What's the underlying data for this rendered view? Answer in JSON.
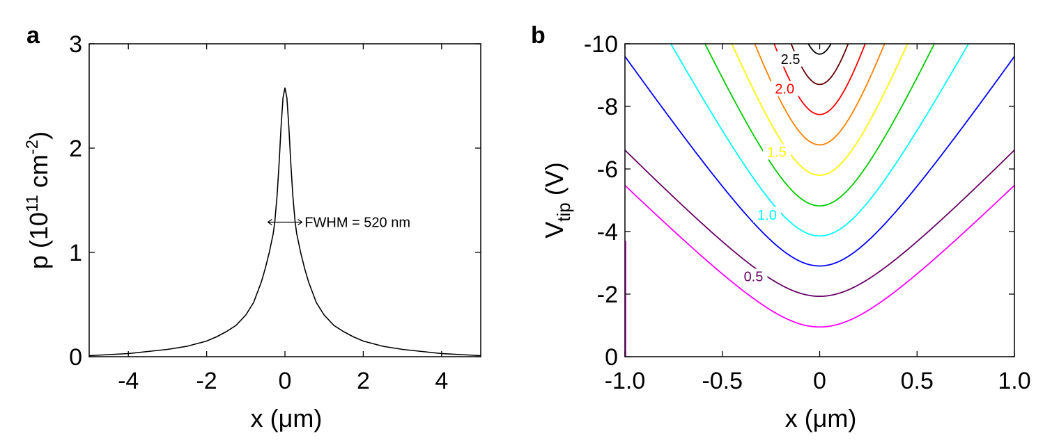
{
  "chart_data": [
    {
      "panel": "a",
      "type": "line",
      "xlabel_parts": [
        "x (",
        "μm",
        ")"
      ],
      "ylabel_parts": [
        "p (10",
        "11",
        " cm",
        "-2",
        ")"
      ],
      "xlim": [
        -5,
        5
      ],
      "ylim": [
        0,
        3
      ],
      "xticks": [
        -4,
        -2,
        0,
        2,
        4
      ],
      "xtick_labels": [
        "-4",
        "-2",
        "0",
        "2",
        "4"
      ],
      "yticks": [
        0,
        1,
        2,
        3
      ],
      "ytick_labels": [
        "0",
        "1",
        "2",
        "3"
      ],
      "grid": false,
      "series": [
        {
          "color": "#000000",
          "x": [
            -5,
            -4.5,
            -4,
            -3.5,
            -3,
            -2.5,
            -2,
            -1.75,
            -1.5,
            -1.25,
            -1,
            -0.8,
            -0.6,
            -0.5,
            -0.4,
            -0.3,
            -0.26,
            -0.2,
            -0.15,
            -0.1,
            -0.05,
            0,
            0.05,
            0.1,
            0.15,
            0.2,
            0.26,
            0.3,
            0.4,
            0.5,
            0.6,
            0.8,
            1,
            1.25,
            1.5,
            1.75,
            2,
            2.5,
            3,
            3.5,
            4,
            4.5,
            5
          ],
          "y": [
            0.01,
            0.02,
            0.03,
            0.05,
            0.07,
            0.1,
            0.15,
            0.19,
            0.24,
            0.3,
            0.4,
            0.52,
            0.72,
            0.85,
            1.0,
            1.18,
            1.29,
            1.55,
            1.85,
            2.2,
            2.48,
            2.58,
            2.48,
            2.2,
            1.85,
            1.55,
            1.29,
            1.18,
            1.0,
            0.85,
            0.72,
            0.52,
            0.4,
            0.3,
            0.24,
            0.19,
            0.15,
            0.1,
            0.07,
            0.05,
            0.03,
            0.02,
            0.01
          ]
        }
      ],
      "annotation": {
        "text": "FWHM = 520 nm",
        "arrow_x": [
          -0.26,
          0.26
        ],
        "arrow_y": 1.29,
        "text_x": 0.45,
        "text_y": 1.29
      }
    },
    {
      "panel": "b",
      "type": "contour",
      "xlabel_parts": [
        "x (",
        "μm",
        ")"
      ],
      "ylabel_parts": [
        "V",
        "tip",
        " (V)"
      ],
      "xlim": [
        -1.0,
        1.0
      ],
      "ylim": [
        0,
        -10
      ],
      "xticks": [
        -1.0,
        -0.5,
        0,
        0.5,
        1.0
      ],
      "xtick_labels": [
        "-1.0",
        "-0.5",
        "0",
        "0.5",
        "1.0"
      ],
      "yticks": [
        0,
        -2,
        -4,
        -6,
        -8,
        -10
      ],
      "ytick_labels": [
        "0",
        "-2",
        "-4",
        "-6",
        "-8",
        "-10"
      ],
      "grid": false,
      "contours": [
        {
          "level": 0.25,
          "color": "#ff00ff",
          "vmin": -0.95,
          "slope": 6.2,
          "width": 0.32
        },
        {
          "level": 0.5,
          "color": "#660066",
          "vmin": -1.93,
          "slope": 6.4,
          "width": 0.32
        },
        {
          "level": 0.75,
          "color": "#0000ff",
          "vmin": -2.9,
          "slope": 9.0,
          "width": 0.3
        },
        {
          "level": 1.0,
          "color": "#00ffff",
          "vmin": -3.86,
          "slope": 11.5,
          "width": 0.28
        },
        {
          "level": 1.25,
          "color": "#00cc00",
          "vmin": -4.82,
          "slope": 13.5,
          "width": 0.26
        },
        {
          "level": 1.5,
          "color": "#ffff00",
          "vmin": -5.8,
          "slope": 15.5,
          "width": 0.24
        },
        {
          "level": 1.75,
          "color": "#ff8000",
          "vmin": -6.77,
          "slope": 18.0,
          "width": 0.22
        },
        {
          "level": 2.0,
          "color": "#ff0000",
          "vmin": -7.74,
          "slope": 21.0,
          "width": 0.2
        },
        {
          "level": 2.25,
          "color": "#660000",
          "vmin": -8.7,
          "slope": 25.0,
          "width": 0.18
        },
        {
          "level": 2.5,
          "color": "#000000",
          "vmin": -9.67,
          "slope": 30.0,
          "width": 0.15
        }
      ],
      "contour_labels": [
        {
          "text": "0.5",
          "x": -0.34,
          "y": -2.5,
          "color": "#660066"
        },
        {
          "text": "1.0",
          "x": -0.27,
          "y": -4.47,
          "color": "#00ffff"
        },
        {
          "text": "1.5",
          "x": -0.22,
          "y": -6.48,
          "color": "#ffff00"
        },
        {
          "text": "2.0",
          "x": -0.18,
          "y": -8.5,
          "color": "#ff0000"
        },
        {
          "text": "2.5",
          "x": -0.15,
          "y": -9.45,
          "color": "#000000"
        }
      ]
    }
  ]
}
